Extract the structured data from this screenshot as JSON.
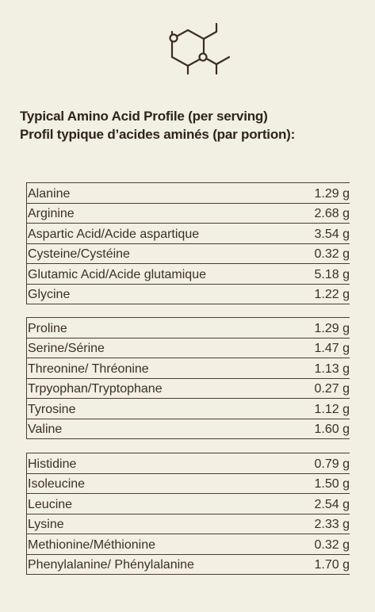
{
  "header": {
    "title_en": "Typical Amino Acid Profile (per serving)",
    "title_fr": "Profil typique d’acides aminés (par portion):"
  },
  "table": {
    "groups": [
      {
        "rows": [
          [
            "Alanine",
            "1.29 g"
          ],
          [
            "Arginine",
            "2.68 g"
          ],
          [
            "Aspartic Acid/Acide aspartique",
            "3.54 g"
          ],
          [
            "Cysteine/Cystéine",
            "0.32 g"
          ],
          [
            "Glutamic Acid/Acide glutamique",
            "5.18 g"
          ],
          [
            "Glycine",
            "1.22 g"
          ]
        ]
      },
      {
        "rows": [
          [
            "Proline",
            "1.29 g"
          ],
          [
            "Serine/Sérine",
            "1.47 g"
          ],
          [
            "Threonine/ Thréonine",
            "1.13 g"
          ],
          [
            "Trpyophan/Tryptophane",
            "0.27 g"
          ],
          [
            "Tyrosine",
            "1.12 g"
          ],
          [
            "Valine",
            "1.60 g"
          ]
        ]
      },
      {
        "rows": [
          [
            "Histidine",
            "0.79 g"
          ],
          [
            "Isoleucine",
            "1.50 g"
          ],
          [
            "Leucine",
            "2.54 g"
          ],
          [
            "Lysine",
            "2.33 g"
          ],
          [
            "Methionine/Méthionine",
            "0.32 g"
          ],
          [
            "Phenylalanine/ Phénylalanine",
            "1.70 g"
          ]
        ]
      }
    ]
  }
}
